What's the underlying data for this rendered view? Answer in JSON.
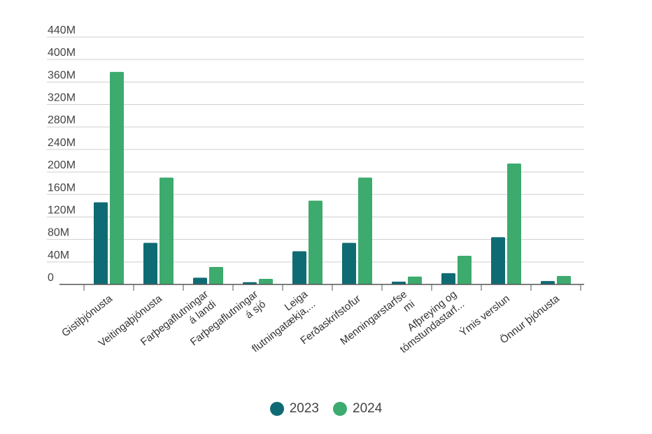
{
  "chart_data": {
    "type": "bar",
    "title": "",
    "xlabel": "",
    "ylabel": "",
    "ylim": [
      0,
      440000000
    ],
    "y_ticks": [
      0,
      40000000,
      80000000,
      120000000,
      160000000,
      200000000,
      240000000,
      280000000,
      320000000,
      360000000,
      400000000,
      440000000
    ],
    "y_tick_labels": [
      "0",
      "40M",
      "80M",
      "120M",
      "160M",
      "200M",
      "240M",
      "280M",
      "320M",
      "360M",
      "400M",
      "440M"
    ],
    "categories": [
      [
        "Gistiþjónusta"
      ],
      [
        "Veitingaþjónusta"
      ],
      [
        "Farþegaflutningar",
        "á landi"
      ],
      [
        "Farþegaflutningar",
        "á sjó"
      ],
      [
        "Leiga",
        "flutningatækja,..."
      ],
      [
        "Ferðaskrifstofur"
      ],
      [
        "Menningarstarfse",
        "mi"
      ],
      [
        "Afþreying og",
        "tómstundastarf..."
      ],
      [
        "Ýmis verslun"
      ],
      [
        "Önnur þjónusta"
      ]
    ],
    "series": [
      {
        "name": "2023",
        "color": "#0f6b73",
        "values": [
          146000000,
          74000000,
          12000000,
          4000000,
          59000000,
          74000000,
          5000000,
          20000000,
          84000000,
          6000000
        ]
      },
      {
        "name": "2024",
        "color": "#3daa6e",
        "values": [
          378000000,
          190000000,
          31000000,
          10000000,
          149000000,
          190000000,
          14000000,
          51000000,
          215000000,
          15000000
        ]
      }
    ],
    "grid": true,
    "legend_position": "bottom"
  }
}
